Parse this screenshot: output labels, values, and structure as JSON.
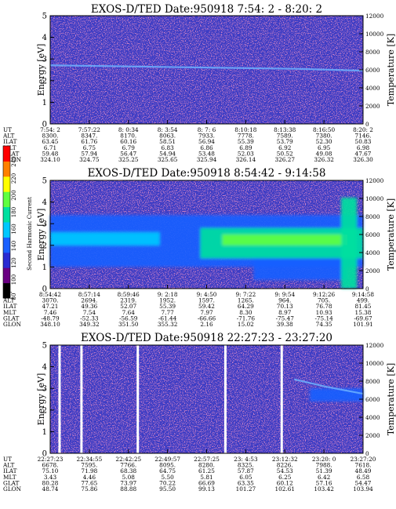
{
  "chart_data": [
    {
      "type": "heatmap",
      "title": "EXOS-D/TED   Date:950918   7:54: 2 - 8:20: 2",
      "ylabel": "Energy [eV]",
      "y2label": "Temperature [K]",
      "ylim": [
        0,
        5
      ],
      "y2lim": [
        0,
        12000
      ],
      "yticks": [
        "0",
        "1",
        "2",
        "3",
        "4",
        "5"
      ],
      "y2ticks": [
        "0",
        "2000",
        "4000",
        "6000",
        "8000",
        "10000",
        "12000"
      ],
      "grid": false,
      "rows": {
        "UT": [
          "7:54: 2",
          "7:57:22",
          "8: 0:34",
          "8: 3:54",
          "8: 7: 6",
          "8:10:18",
          "8:13:38",
          "8:16:50",
          "8:20: 2"
        ],
        "ALT": [
          "8300.",
          "8347.",
          "8170.",
          "8063.",
          "7933.",
          "7778.",
          "7589.",
          "7380.",
          "7146."
        ],
        "ILAT": [
          "63.45",
          "61.76",
          "60.16",
          "58.51",
          "56.94",
          "55.39",
          "53.79",
          "52.30",
          "50.83"
        ],
        "MLT": [
          "6.71",
          "6.75",
          "6.79",
          "6.83",
          "6.86",
          "6.89",
          "6.92",
          "6.95",
          "6.98"
        ],
        "GLAT": [
          "59.48",
          "57.94",
          "56.47",
          "54.94",
          "53.48",
          "52.03",
          "50.52",
          "49.08",
          "47.67"
        ],
        "GLON": [
          "324.10",
          "324.75",
          "325.25",
          "325.65",
          "325.94",
          "326.14",
          "326.27",
          "326.32",
          "326.30"
        ]
      },
      "temperature_line": [
        {
          "time_frac": 0.0,
          "k": 6500
        },
        {
          "time_frac": 0.4,
          "k": 6300
        },
        {
          "time_frac": 0.8,
          "k": 6100
        },
        {
          "time_frac": 1.0,
          "k": 5900
        }
      ],
      "features": [
        {
          "time": [
            0.0,
            1.0
          ],
          "energy": [
            0,
            5
          ],
          "level": 90
        }
      ]
    },
    {
      "type": "heatmap",
      "title": "EXOS-D/TED   Date:950918   8:54:42 - 9:14:58",
      "ylabel": "Energy [eV]",
      "y2label": "Temperature [K]",
      "ylim": [
        0,
        5
      ],
      "y2lim": [
        0,
        12000
      ],
      "yticks": [
        "0",
        "1",
        "2",
        "3",
        "4",
        "5"
      ],
      "y2ticks": [
        "0",
        "2000",
        "4000",
        "6000",
        "8000",
        "10000",
        "12000"
      ],
      "grid": false,
      "rows": {
        "UT": [
          "8:54:42",
          "8:57:14",
          "8:59:46",
          "9: 2:18",
          "9: 4:50",
          "9: 7:22",
          "9: 9:54",
          "9:12:26",
          "9:14:58"
        ],
        "ALT": [
          "3070.",
          "2694.",
          "2319.",
          "1952.",
          "1597.",
          "1265.",
          "964.",
          "705.",
          "499."
        ],
        "ILAT": [
          "47.21",
          "49.36",
          "52.07",
          "55.39",
          "59.42",
          "64.29",
          "70.13",
          "76.78",
          "81.45"
        ],
        "MLT": [
          "7.46",
          "7.54",
          "7.64",
          "7.77",
          "7.97",
          "8.30",
          "8.97",
          "10.93",
          "15.38"
        ],
        "GLAT": [
          "-48.79",
          "-52.33",
          "-56.59",
          "-61.44",
          "-66.66",
          "-71.76",
          "-75.47",
          "-75.14",
          "-69.67"
        ],
        "GLON": [
          "348.10",
          "349.32",
          "351.50",
          "355.32",
          "2.16",
          "15.02",
          "39.38",
          "74.35",
          "101.91"
        ]
      },
      "colorbar": {
        "label": "Second Harmonic Current",
        "ticks": [
          "80",
          "100",
          "120",
          "140",
          "160",
          "180",
          "200",
          "220",
          "240"
        ],
        "colors": [
          "#000000",
          "#6a0082",
          "#2a2ad2",
          "#1a60ff",
          "#00c8ff",
          "#00e0a0",
          "#60ff40",
          "#ffff00",
          "#ff8000",
          "#ff0000"
        ]
      },
      "features": [
        {
          "time": [
            0.0,
            1.0
          ],
          "energy": [
            1.0,
            3.4
          ],
          "level": 135
        },
        {
          "time": [
            0.0,
            0.35
          ],
          "energy": [
            2.0,
            2.6
          ],
          "level": 150
        },
        {
          "time": [
            0.48,
            1.0
          ],
          "energy": [
            1.4,
            2.8
          ],
          "level": 165
        },
        {
          "time": [
            0.55,
            0.95
          ],
          "energy": [
            2.0,
            2.5
          ],
          "level": 190
        },
        {
          "time": [
            0.65,
            0.95
          ],
          "energy": [
            0.4,
            1.4
          ],
          "level": 130
        },
        {
          "time": [
            0.93,
            0.98
          ],
          "energy": [
            0,
            4.2
          ],
          "level": 165
        }
      ]
    },
    {
      "type": "heatmap",
      "title": "EXOS-D/TED   Date:950918   22:27:23 - 23:27:20",
      "ylabel": "Energy [eV]",
      "y2label": "Temperature [K]",
      "ylim": [
        0,
        5
      ],
      "y2lim": [
        0,
        12000
      ],
      "yticks": [
        "0",
        "1",
        "2",
        "3",
        "4",
        "5"
      ],
      "y2ticks": [
        "0",
        "2000",
        "4000",
        "6000",
        "8000",
        "10000",
        "12000"
      ],
      "grid": false,
      "rows": {
        "UT": [
          "22:27:23",
          "22:34:55",
          "22:42:25",
          "22:49:57",
          "22:57:25",
          "23: 4:53",
          "23:12:32",
          "23:20: 0",
          "23:27:20"
        ],
        "ALT": [
          "6678.",
          "7595.",
          "7766.",
          "8095.",
          "8280.",
          "8325.",
          "8226.",
          "7988.",
          "7618."
        ],
        "ILAT": [
          "75.10",
          "71.98",
          "68.38",
          "64.75",
          "61.25",
          "57.87",
          "54.53",
          "51.39",
          "48.49"
        ],
        "MLT": [
          "3.43",
          "4.46",
          "5.08",
          "5.50",
          "5.81",
          "6.05",
          "6.25",
          "6.42",
          "6.58"
        ],
        "GLAT": [
          "80.28",
          "77.65",
          "73.97",
          "70.22",
          "66.69",
          "63.35",
          "60.12",
          "57.16",
          "54.47"
        ],
        "GLON": [
          "48.74",
          "75.86",
          "88.88",
          "95.50",
          "99.13",
          "101.27",
          "102.61",
          "103.42",
          "103.94"
        ]
      },
      "temperature_line": [
        {
          "time_frac": 0.78,
          "k": 8200
        },
        {
          "time_frac": 0.88,
          "k": 7400
        },
        {
          "time_frac": 1.0,
          "k": 6600
        }
      ],
      "features": [
        {
          "time": [
            0.83,
            1.0
          ],
          "energy": [
            2.4,
            3.0
          ],
          "level": 130
        }
      ],
      "gaps": [
        0.03,
        0.1,
        0.28,
        0.56,
        0.74
      ]
    }
  ]
}
